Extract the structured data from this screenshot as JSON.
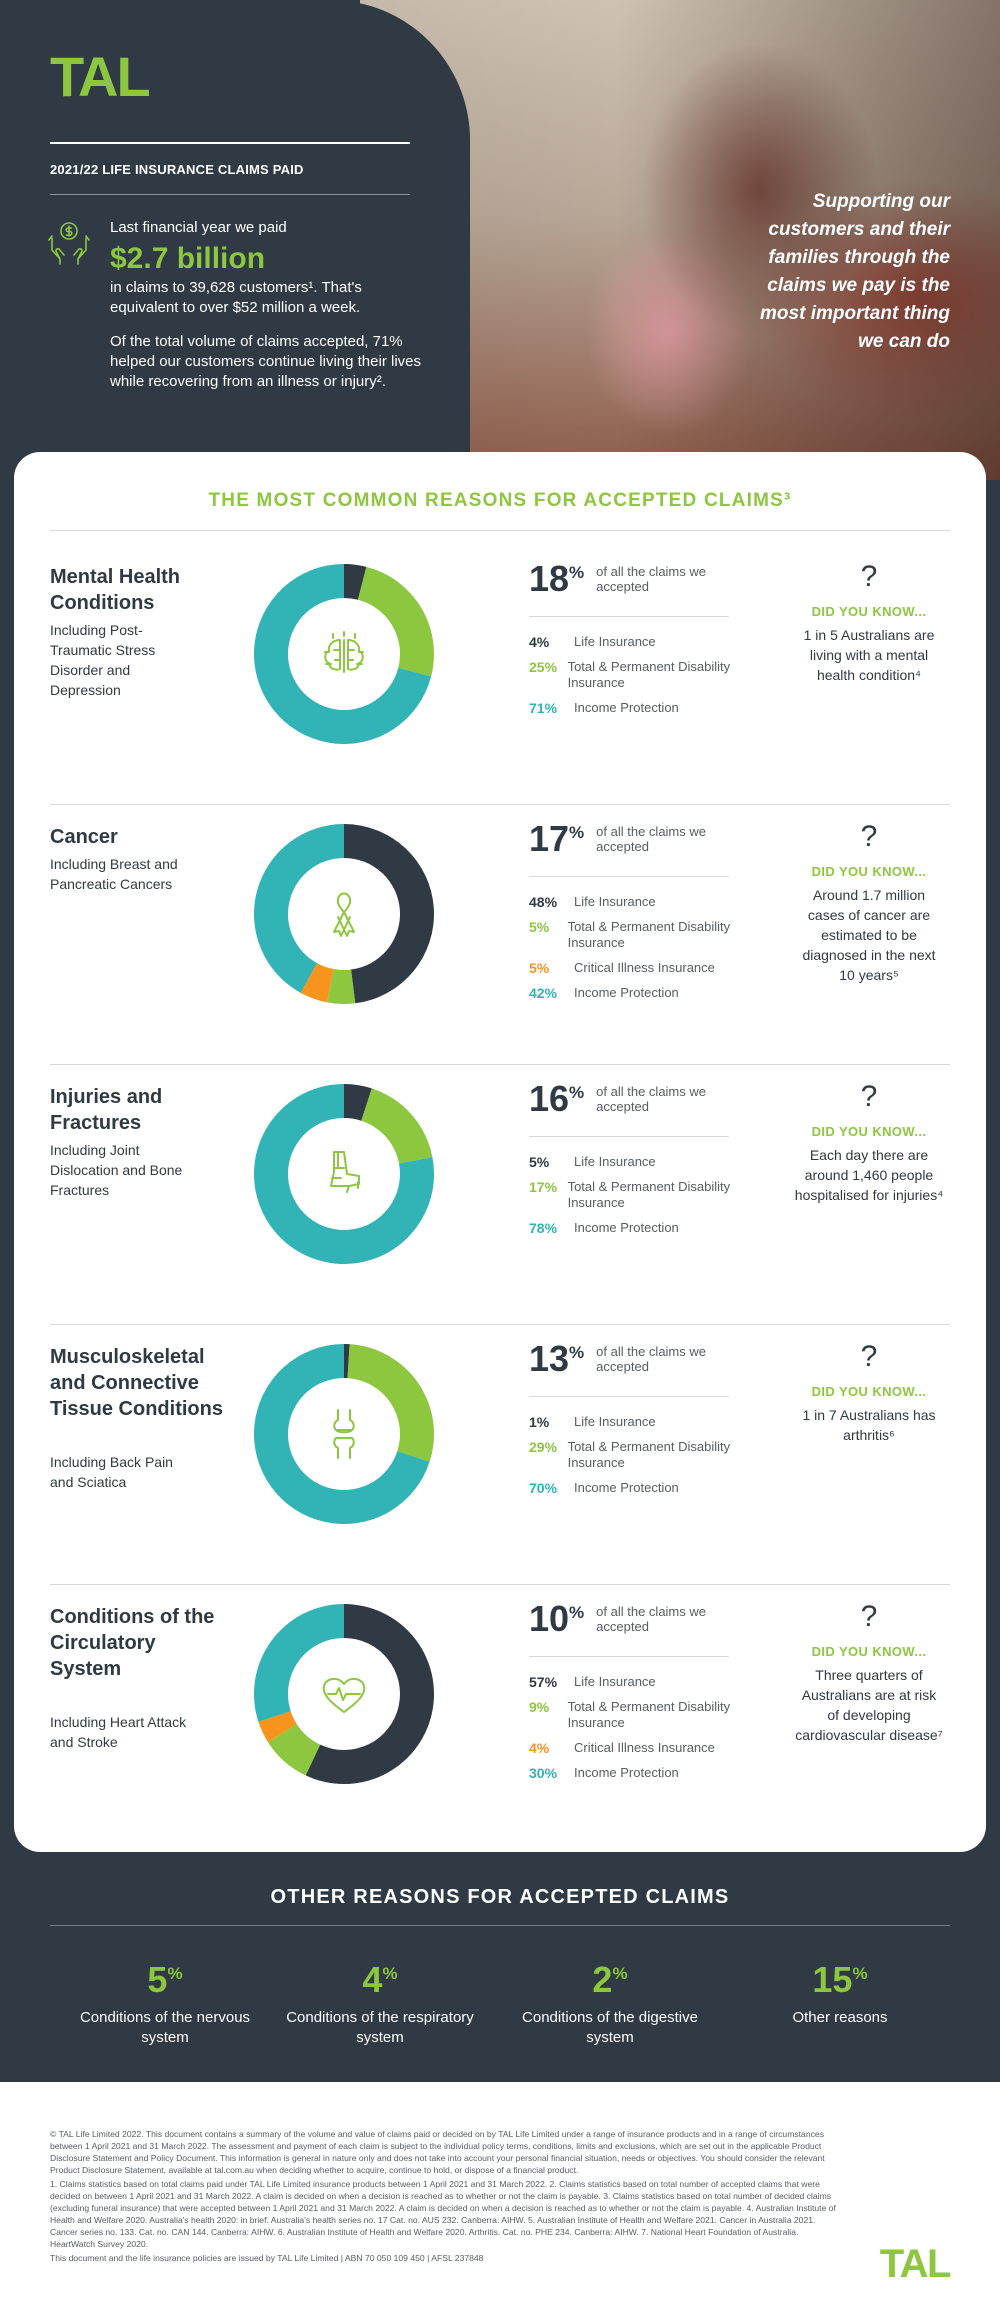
{
  "brand": {
    "logo_text": "TAL",
    "colors": {
      "green": "#8dc63f",
      "teal": "#32b3b5",
      "navy": "#2f3a44",
      "orange": "#f7941d"
    }
  },
  "hero": {
    "heading": "2021/22 LIFE INSURANCE CLAIMS PAID",
    "icon": "money-hands-icon",
    "intro": "Last financial year we paid",
    "amount": "$2.7 billion",
    "claims_text": "in claims to 39,628 customers¹. That's equivalent to over $52 million a week.",
    "volume_text": "Of the total volume of claims accepted, 71% helped our customers continue living their lives while recovering from an illness or injury².",
    "quote": "Supporting our customers and their families through the claims we pay is the most important thing we can do"
  },
  "common": {
    "title": "THE MOST COMMON REASONS FOR ACCEPTED CLAIMS³",
    "of_claims_note": "of all the claims we accepted",
    "did_you_know_label": "DID YOU KNOW...",
    "question_mark": "?"
  },
  "chart_data": [
    {
      "type": "pie",
      "title": "Mental Health Conditions",
      "subtitle": "Including Post-Traumatic Stress Disorder and Depression",
      "share_of_claims": 18,
      "categories": [
        "Life Insurance",
        "Total & Permanent Disability Insurance",
        "Income Protection"
      ],
      "values": [
        4,
        25,
        71
      ],
      "colors": [
        "#2f3a44",
        "#8dc63f",
        "#32b3b5"
      ],
      "icon": "brain-icon",
      "fact": "1 in 5 Australians are living with a mental health condition⁴"
    },
    {
      "type": "pie",
      "title": "Cancer",
      "subtitle": "Including Breast and Pancreatic Cancers",
      "share_of_claims": 17,
      "categories": [
        "Life Insurance",
        "Total & Permanent Disability Insurance",
        "Critical Illness Insurance",
        "Income Protection"
      ],
      "values": [
        48,
        5,
        5,
        42
      ],
      "colors": [
        "#2f3a44",
        "#8dc63f",
        "#f7941d",
        "#32b3b5"
      ],
      "icon": "ribbon-icon",
      "fact": "Around 1.7 million cases of cancer are estimated to be diagnosed in the next 10 years⁵"
    },
    {
      "type": "pie",
      "title": "Injuries and Fractures",
      "subtitle": "Including Joint Dislocation and Bone Fractures",
      "share_of_claims": 16,
      "categories": [
        "Life Insurance",
        "Total & Permanent Disability Insurance",
        "Income Protection"
      ],
      "values": [
        5,
        17,
        78
      ],
      "colors": [
        "#2f3a44",
        "#8dc63f",
        "#32b3b5"
      ],
      "icon": "leg-cast-icon",
      "fact": "Each day there are around 1,460 people hospitalised for injuries⁴"
    },
    {
      "type": "pie",
      "title": "Musculoskeletal and Connective Tissue Conditions",
      "subtitle": "Including Back Pain and Sciatica",
      "share_of_claims": 13,
      "categories": [
        "Life Insurance",
        "Total & Permanent Disability Insurance",
        "Income Protection"
      ],
      "values": [
        1,
        29,
        70
      ],
      "colors": [
        "#2f3a44",
        "#8dc63f",
        "#32b3b5"
      ],
      "icon": "knee-joint-icon",
      "fact": "1 in 7 Australians has arthritis⁶"
    },
    {
      "type": "pie",
      "title": "Conditions of the Circulatory System",
      "subtitle": "Including Heart Attack and Stroke",
      "share_of_claims": 10,
      "categories": [
        "Life Insurance",
        "Total & Permanent Disability Insurance",
        "Critical Illness Insurance",
        "Income Protection"
      ],
      "values": [
        57,
        9,
        4,
        30
      ],
      "colors": [
        "#2f3a44",
        "#8dc63f",
        "#f7941d",
        "#32b3b5"
      ],
      "icon": "heart-pulse-icon",
      "fact": "Three quarters of Australians are at risk of developing cardiovascular disease⁷"
    }
  ],
  "other": {
    "title": "OTHER REASONS FOR ACCEPTED CLAIMS",
    "items": [
      {
        "value": 5,
        "label": "Conditions of the nervous system"
      },
      {
        "value": 4,
        "label": "Conditions of the respiratory system"
      },
      {
        "value": 2,
        "label": "Conditions of the digestive system"
      },
      {
        "value": 15,
        "label": "Other reasons"
      }
    ]
  },
  "footer": {
    "disclaimer": "© TAL Life Limited 2022. This document contains a summary of the volume and value of claims paid or decided on by TAL Life Limited under a range of insurance products and in a range of circumstances between 1 April 2021 and 31 March 2022. The assessment and payment of each claim is subject to the individual policy terms, conditions, limits and exclusions, which are set out in the applicable Product Disclosure Statement and Policy Document. This information is general in nature only and does not take into account your personal financial situation, needs or objectives. You should consider the relevant Product Disclosure Statement, available at tal.com.au when deciding whether to acquire, continue to hold, or dispose of a financial product.",
    "notes": "1. Claims statistics based on total claims paid under TAL Life Limited insurance products between 1 April 2021 and 31 March 2022. 2. Claims statistics based on total number of accepted claims that were decided on between 1 April 2021 and 31 March 2022. A claim is decided on when a decision is reached as to whether or not the claim is payable. 3. Claims statistics based on total number of decided claims (excluding funeral insurance) that were accepted between 1 April 2021 and 31 March 2022. A claim is decided on when a decision is reached as to whether or not the claim is payable. 4. Australian Institute of Health and Welfare 2020. Australia's health 2020: in brief. Australia's health series no. 17 Cat. no. AUS 232. Canberra: AIHW. 5. Australian Institute of Health and Welfare 2021. Cancer in Australia 2021. Cancer series no. 133. Cat. no. CAN 144. Canberra: AIHW. 6. Australian Institute of Health and Welfare 2020. Arthritis. Cat. no. PHE 234. Canberra: AIHW. 7. National Heart Foundation of Australia. HeartWatch Survey 2020.",
    "issuer": "This document and the life insurance policies are issued by TAL Life Limited | ABN 70 050 109 450 | AFSL 237848",
    "logo_text": "TAL"
  }
}
